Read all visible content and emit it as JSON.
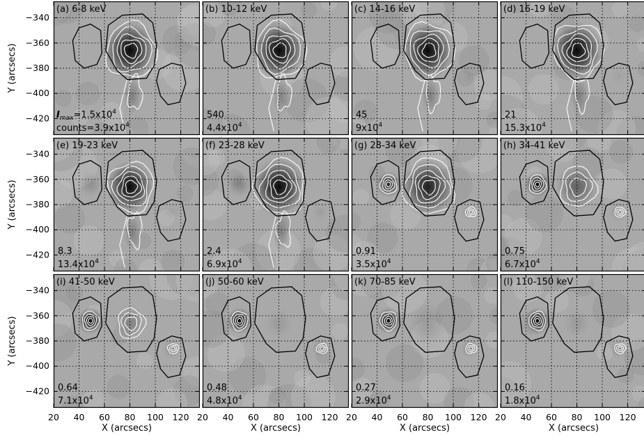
{
  "figure": {
    "x_axis_label": "X (arcsecs)",
    "y_axis_label": "Y (arcsecs)",
    "x_ticks": [
      "20",
      "40",
      "60",
      "80",
      "100",
      "120"
    ],
    "y_ticks": [
      "-340",
      "-360",
      "-380",
      "-400",
      "-420"
    ],
    "imax_label": "I",
    "imax_sub": "max",
    "imax_eq": "=1.5x10",
    "counts_eq": "counts=3.9x10",
    "exponent": "4"
  },
  "panels": [
    {
      "title": "(a) 6-8 keV",
      "imax": "",
      "counts": ""
    },
    {
      "title": "(b) 10-12 keV",
      "imax": "540",
      "counts": "4.4x10"
    },
    {
      "title": "(c) 14-16 keV",
      "imax": "45",
      "counts": "9x10"
    },
    {
      "title": "(d) 16-19 keV",
      "imax": "21",
      "counts": "15.3x10"
    },
    {
      "title": "(e) 19-23 keV",
      "imax": "8.3",
      "counts": "13.4x10"
    },
    {
      "title": "(f) 23-28 keV",
      "imax": "2.4",
      "counts": "6.9x10"
    },
    {
      "title": "(g) 28-34 keV",
      "imax": "0.91",
      "counts": "3.5x10"
    },
    {
      "title": "(h) 34-41 keV",
      "imax": "0.75",
      "counts": "6.7x10"
    },
    {
      "title": "(i) 41-50 keV",
      "imax": "0.64",
      "counts": "7.1x10"
    },
    {
      "title": "(j) 50-60 keV",
      "imax": "0.48",
      "counts": "4.8x10"
    },
    {
      "title": "(k) 70-85 keV",
      "imax": "0.27",
      "counts": "2.9x10"
    },
    {
      "title": "(l) 110-150 keV",
      "imax": "0.16",
      "counts": "1.8x10"
    }
  ]
}
